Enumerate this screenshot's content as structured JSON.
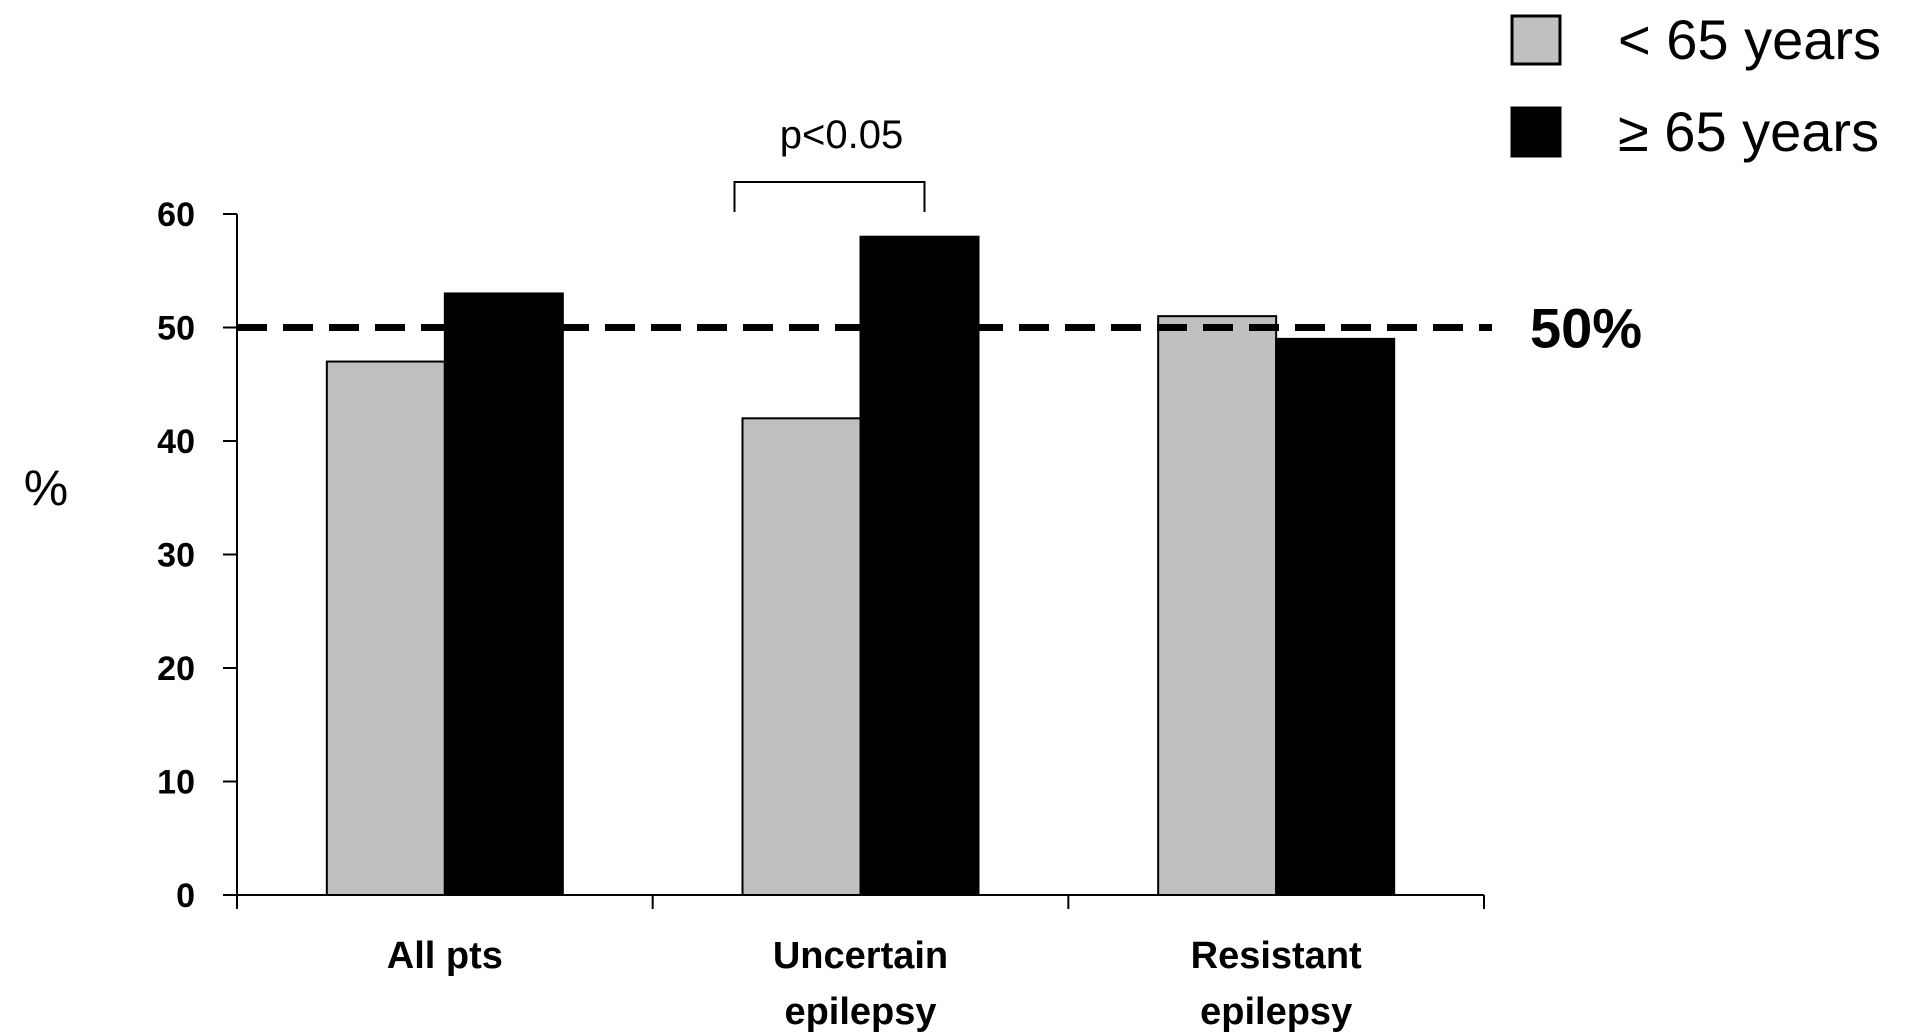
{
  "chart_data": {
    "type": "bar",
    "title": "",
    "xlabel": "",
    "ylabel": "%",
    "ylim": [
      0,
      60
    ],
    "yticks": [
      0,
      10,
      20,
      30,
      40,
      50,
      60
    ],
    "categories": [
      [
        "All pts"
      ],
      [
        "Uncertain",
        "epilepsy"
      ],
      [
        "Resistant",
        "epilepsy"
      ]
    ],
    "series": [
      {
        "name": "< 65 years",
        "color": "#c0c0c0",
        "values": [
          47,
          42,
          51
        ]
      },
      {
        "name": "≥ 65 years",
        "color": "#000000",
        "values": [
          53,
          58,
          49
        ]
      }
    ],
    "reference_line": {
      "value": 50,
      "label": "50%",
      "style": "dashed"
    },
    "annotation": {
      "text": "p<0.05",
      "category_index": 1
    },
    "legend_position": "top-right",
    "grid": false
  }
}
